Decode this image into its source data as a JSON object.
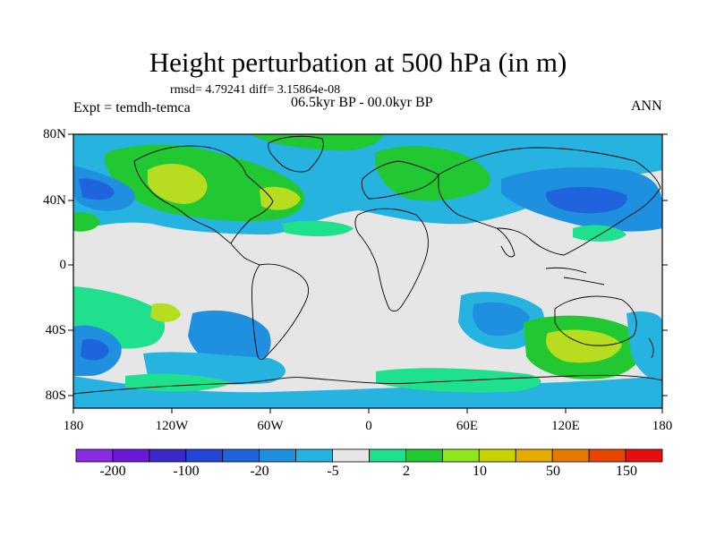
{
  "title": "Height perturbation at 500 hPa (in m)",
  "stats": "rmsd= 4.79241 diff= 3.15864e-08",
  "experiment": "Expt = temdh-temca",
  "period": "06.5kyr BP - 00.0kyr BP",
  "season": "ANN",
  "lat_labels": [
    "80N",
    "40N",
    "0",
    "40S",
    "80S"
  ],
  "lon_labels": [
    "180",
    "120W",
    "60W",
    "0",
    "60E",
    "120E",
    "180"
  ],
  "colorbar": {
    "colors": [
      "#8a2be2",
      "#6a19d6",
      "#3c28c8",
      "#2346d6",
      "#1f64dc",
      "#1f8fe0",
      "#26b3e0",
      "#e6e6e6",
      "#1fe08c",
      "#22c832",
      "#8ee61c",
      "#c8d200",
      "#e6aa00",
      "#e67a00",
      "#e64600",
      "#e60f0f"
    ],
    "labels": [
      "-200",
      "-100",
      "-20",
      "-5",
      "2",
      "10",
      "50",
      "150"
    ]
  },
  "icons": [
    "world-coastline-map"
  ]
}
